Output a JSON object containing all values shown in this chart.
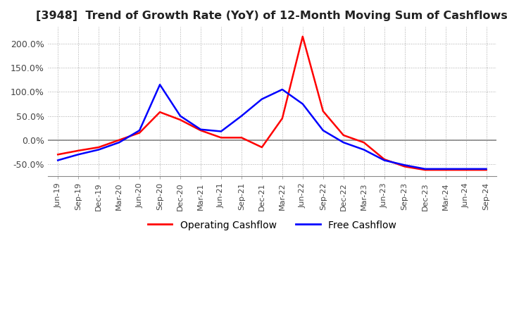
{
  "title": "[3948]  Trend of Growth Rate (YoY) of 12-Month Moving Sum of Cashflows",
  "title_fontsize": 11.5,
  "background_color": "#ffffff",
  "grid_color": "#aaaaaa",
  "legend": [
    "Operating Cashflow",
    "Free Cashflow"
  ],
  "line_colors": [
    "#ff0000",
    "#0000ff"
  ],
  "x_labels": [
    "Jun-19",
    "Sep-19",
    "Dec-19",
    "Mar-20",
    "Jun-20",
    "Sep-20",
    "Dec-20",
    "Mar-21",
    "Jun-21",
    "Sep-21",
    "Dec-21",
    "Mar-22",
    "Jun-22",
    "Sep-22",
    "Dec-22",
    "Mar-23",
    "Jun-23",
    "Sep-23",
    "Dec-23",
    "Mar-24",
    "Jun-24",
    "Sep-24"
  ],
  "operating_cashflow": [
    -30,
    -22,
    -15,
    0,
    15,
    58,
    42,
    20,
    5,
    5,
    -15,
    45,
    215,
    60,
    10,
    -5,
    -40,
    -55,
    -62,
    -62,
    -62,
    -62
  ],
  "free_cashflow": [
    -42,
    -30,
    -20,
    -5,
    20,
    115,
    50,
    22,
    18,
    50,
    85,
    105,
    75,
    20,
    -5,
    -20,
    -42,
    -52,
    -60,
    -60,
    -60,
    -60
  ],
  "ylim": [
    -75,
    235
  ],
  "yticks": [
    -50,
    0,
    50,
    100,
    150,
    200
  ],
  "figsize": [
    7.2,
    4.4
  ],
  "dpi": 100
}
